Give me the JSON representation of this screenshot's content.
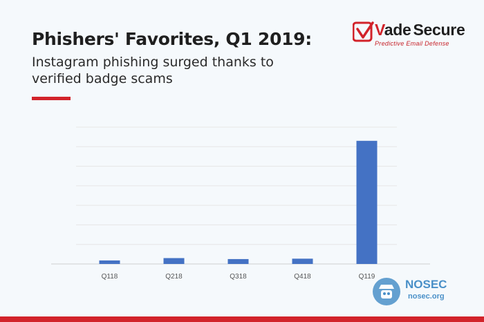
{
  "header": {
    "title": "Phishers' Favorites, Q1 2019:",
    "subtitle": "Instagram phishing surged thanks to verified badge scams"
  },
  "brand": {
    "logo_text_v": "V",
    "logo_text_rest": "ade",
    "logo_text_secure": "Secure",
    "logo_tagline": "Predictive Email Defense"
  },
  "watermark": {
    "name": "NOSEC",
    "domain": "nosec.org"
  },
  "colors": {
    "accent": "#d2232a",
    "bar": "#4472c4",
    "grid": "#e6e6e6",
    "axis": "#d0d0d0",
    "nosec": "#4a90c8"
  },
  "chart_data": {
    "type": "bar",
    "categories": [
      "Q118",
      "Q218",
      "Q318",
      "Q418",
      "Q119"
    ],
    "values": [
      1.8,
      3.0,
      2.5,
      2.7,
      63
    ],
    "ylim": [
      0,
      70
    ],
    "grid": true,
    "title": "",
    "xlabel": "",
    "ylabel": ""
  }
}
